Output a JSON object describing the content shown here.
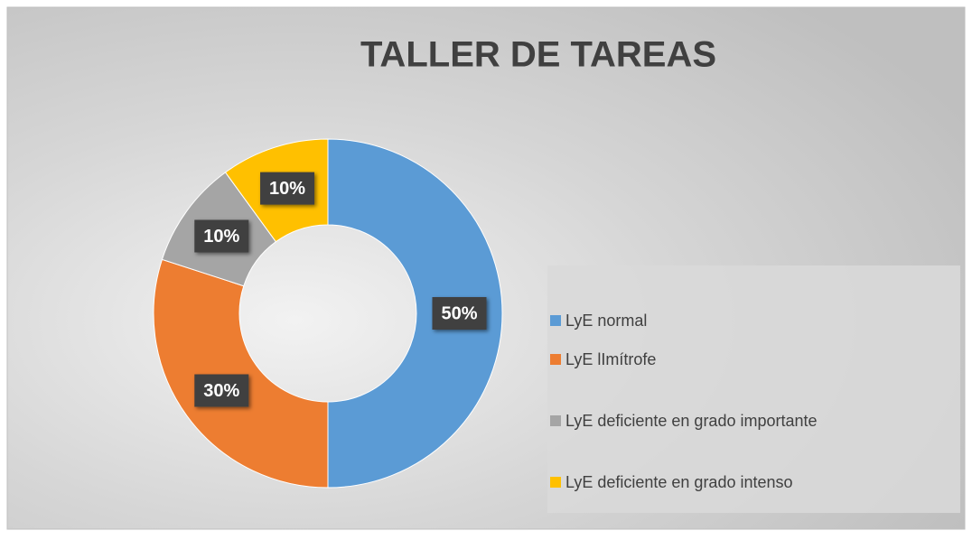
{
  "chart_data": {
    "type": "donut",
    "title": "TALLER DE TAREAS",
    "categories": [
      "LyE normal",
      "LyE lImítrofe",
      "LyE deficiente en grado importante",
      "LyE deficiente en grado intenso"
    ],
    "values": [
      50,
      30,
      10,
      10
    ],
    "value_labels": [
      "50%",
      "30%",
      "10%",
      "10%"
    ],
    "colors": [
      "#5b9bd5",
      "#ed7d31",
      "#a5a5a5",
      "#ffc000"
    ],
    "legend": "right"
  }
}
